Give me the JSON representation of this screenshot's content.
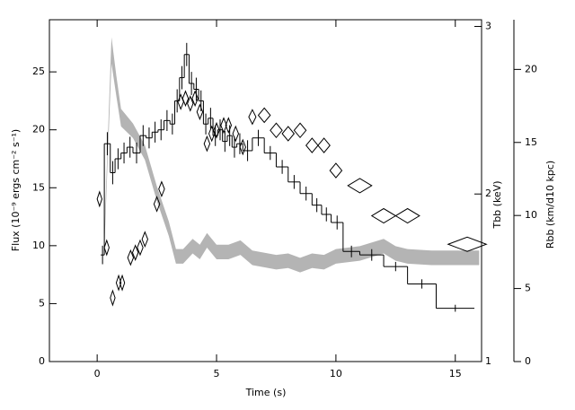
{
  "chart_data": {
    "type": "histogram",
    "xlabel": "Time (s)",
    "ylabel": "Flux (10⁻⁹ ergs cm⁻² s⁻¹)",
    "y2label": "Tbb (keV)",
    "y3label": "Rbb (km/d10 kpc)",
    "xlim": [
      -2,
      16.1
    ],
    "xticks": [
      0,
      5,
      10,
      15
    ],
    "ylim": [
      0,
      29.5
    ],
    "yticks": [
      0,
      5,
      10,
      15,
      20,
      25
    ],
    "y2lim": [
      1,
      3.04
    ],
    "y2ticks": [
      1,
      2,
      3
    ],
    "y3lim": [
      0,
      23.4
    ],
    "y3ticks": [
      0,
      5,
      10,
      15,
      20
    ],
    "color": "#000000",
    "bins": [
      0.15,
      0.3,
      0.55,
      0.75,
      1.0,
      1.25,
      1.5,
      1.8,
      2.05,
      2.3,
      2.55,
      2.8,
      3.05,
      3.25,
      3.45,
      3.65,
      3.85,
      4.05,
      4.25,
      4.45,
      4.65,
      4.85,
      5.05,
      5.25,
      5.45,
      5.65,
      5.85,
      6.1,
      6.5,
      7.0,
      7.5,
      8.0,
      8.5,
      9.0,
      9.4,
      9.8,
      10.3,
      11.0,
      12.0,
      13.0,
      14.2,
      15.8
    ],
    "values": [
      9.2,
      18.8,
      16.3,
      17.5,
      18.0,
      18.5,
      18.0,
      19.5,
      19.3,
      19.8,
      20.0,
      20.8,
      20.5,
      22.5,
      24.5,
      26.5,
      24.0,
      23.5,
      22.5,
      20.5,
      21.0,
      19.5,
      20.0,
      19.0,
      19.5,
      18.5,
      18.8,
      18.2,
      19.3,
      18.0,
      16.8,
      15.5,
      14.5,
      13.5,
      12.7,
      12.0,
      9.5,
      9.2,
      8.2,
      6.7,
      4.6
    ],
    "errors": [
      0.8,
      1.0,
      1.0,
      0.9,
      0.9,
      0.9,
      0.9,
      0.9,
      0.9,
      0.9,
      0.9,
      0.9,
      0.9,
      1.0,
      1.0,
      1.0,
      1.0,
      1.0,
      0.9,
      0.9,
      0.9,
      0.9,
      0.9,
      0.9,
      0.9,
      0.9,
      0.9,
      0.9,
      0.7,
      0.6,
      0.6,
      0.6,
      0.6,
      0.6,
      0.6,
      0.6,
      0.5,
      0.5,
      0.4,
      0.4,
      0.3
    ],
    "temperature": {
      "axis": "y2",
      "x": [
        0.1,
        0.4,
        0.65,
        0.9,
        1.05,
        1.4,
        1.6,
        1.8,
        2.0,
        2.5,
        2.7,
        3.5,
        3.7,
        3.9,
        4.1,
        4.3,
        4.6,
        4.8,
        5.0,
        5.3,
        5.5,
        5.8,
        6.1,
        6.5,
        7.0,
        7.5,
        8.0,
        8.5,
        9.0,
        9.5,
        10.0,
        11.0,
        12.0,
        13.0,
        15.5
      ],
      "values": [
        1.97,
        1.68,
        1.38,
        1.47,
        1.47,
        1.62,
        1.65,
        1.68,
        1.73,
        1.94,
        2.03,
        2.55,
        2.57,
        2.54,
        2.57,
        2.49,
        2.3,
        2.36,
        2.38,
        2.41,
        2.41,
        2.36,
        2.28,
        2.46,
        2.47,
        2.38,
        2.36,
        2.38,
        2.29,
        2.29,
        2.14,
        2.05,
        1.87,
        1.87,
        1.7
      ],
      "xerr": [
        0.1,
        0.1,
        0.1,
        0.1,
        0.1,
        0.12,
        0.12,
        0.12,
        0.12,
        0.12,
        0.12,
        0.12,
        0.12,
        0.12,
        0.12,
        0.12,
        0.12,
        0.12,
        0.12,
        0.12,
        0.12,
        0.12,
        0.12,
        0.15,
        0.25,
        0.25,
        0.25,
        0.25,
        0.25,
        0.25,
        0.25,
        0.5,
        0.5,
        0.5,
        0.8
      ]
    },
    "radius": {
      "axis": "y3",
      "color": "#b4b4b4",
      "x": [
        0.3,
        0.5,
        0.6,
        0.8,
        1.0,
        1.5,
        2.0,
        2.5,
        3.0,
        3.3,
        3.6,
        4.0,
        4.3,
        4.6,
        5.0,
        5.5,
        6.0,
        6.5,
        7.5,
        8.0,
        8.5,
        9.0,
        9.5,
        10.0,
        11.0,
        12.0,
        12.5,
        13.0,
        14.0,
        16.0
      ],
      "lower": [
        7.7,
        16.3,
        20.4,
        18.2,
        16.1,
        15.3,
        13.8,
        11.0,
        8.6,
        6.7,
        6.7,
        7.4,
        7.0,
        7.8,
        7.0,
        7.0,
        7.3,
        6.6,
        6.3,
        6.4,
        6.1,
        6.4,
        6.3,
        6.7,
        6.9,
        7.4,
        6.9,
        6.7,
        6.6,
        6.6
      ],
      "upper": [
        8.7,
        17.7,
        22.2,
        19.6,
        17.3,
        16.3,
        14.8,
        12.0,
        9.6,
        7.7,
        7.7,
        8.4,
        8.0,
        8.8,
        8.0,
        8.0,
        8.3,
        7.6,
        7.3,
        7.4,
        7.1,
        7.4,
        7.3,
        7.7,
        7.9,
        8.4,
        7.9,
        7.7,
        7.6,
        7.6
      ]
    }
  }
}
